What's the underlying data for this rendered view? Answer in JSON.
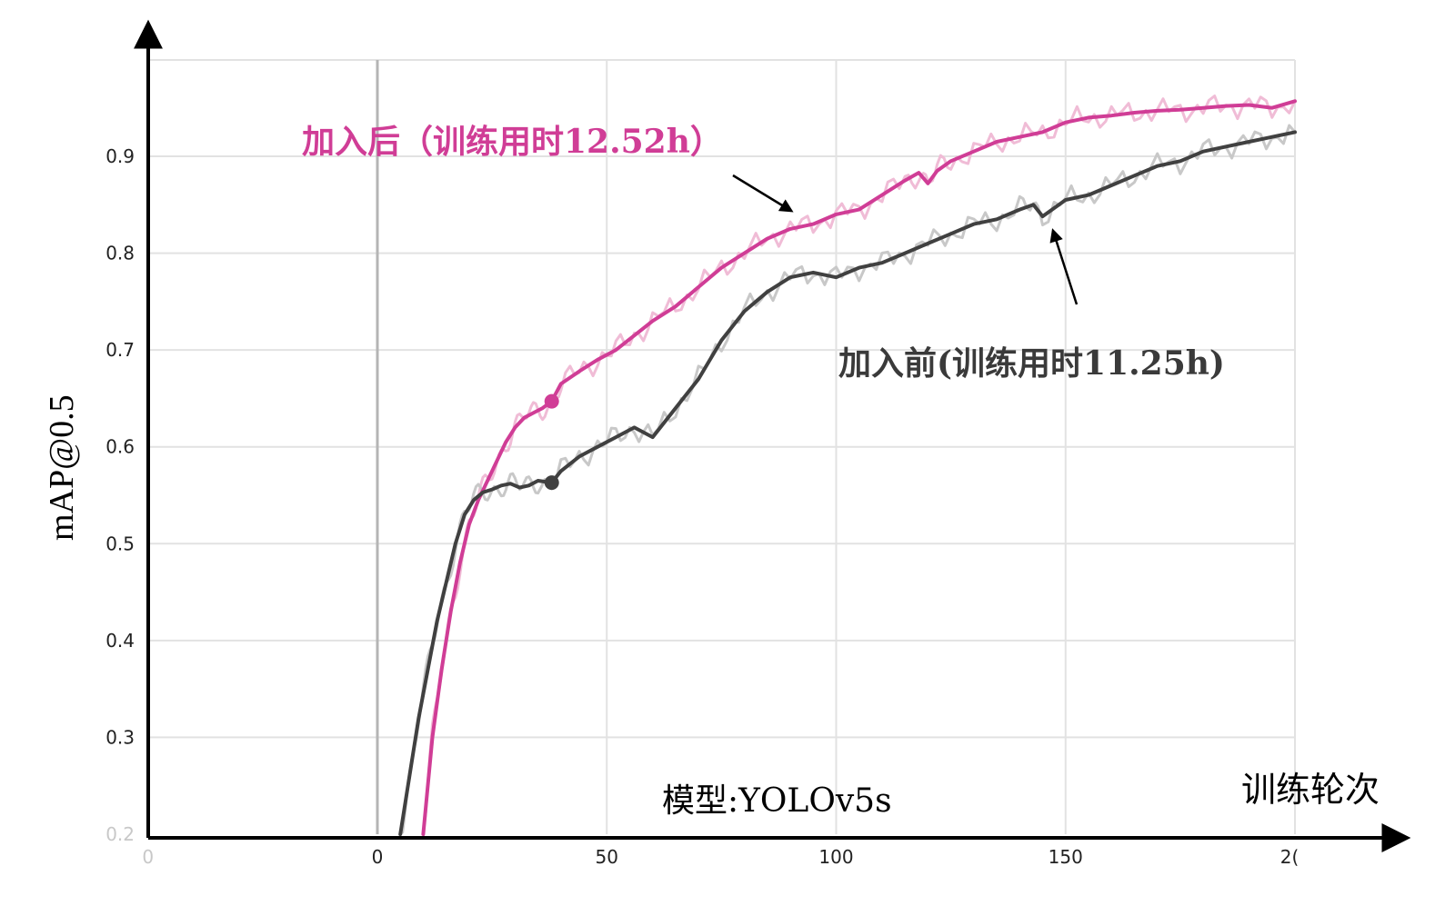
{
  "chart_data": {
    "type": "line",
    "title": "",
    "xlabel": "训练轮次",
    "ylabel": "mAP@0.5",
    "model_label": "模型:YOLOv5s",
    "xlim": [
      -50,
      200
    ],
    "ylim": [
      0.2,
      0.99
    ],
    "x_ticks": [
      "0",
      "0",
      "50",
      "100",
      "150",
      "2("
    ],
    "y_ticks": [
      "0.2",
      "0.3",
      "0.4",
      "0.5",
      "0.6",
      "0.7",
      "0.8",
      "0.9"
    ],
    "grid": true,
    "series": [
      {
        "name": "加入后（训练用时12.52h）",
        "color": "#d03d96",
        "raw_color": "#f0bcd6",
        "marker": {
          "x": 38,
          "y": 0.647
        },
        "x": [
          10,
          12,
          14,
          16,
          18,
          20,
          22,
          24,
          26,
          28,
          30,
          32,
          34,
          36,
          38,
          40,
          44,
          48,
          52,
          56,
          60,
          65,
          70,
          75,
          80,
          85,
          90,
          95,
          100,
          105,
          110,
          115,
          118,
          120,
          122,
          125,
          130,
          135,
          140,
          145,
          150,
          155,
          160,
          165,
          170,
          175,
          180,
          185,
          190,
          195,
          200
        ],
        "values": [
          0.2,
          0.3,
          0.37,
          0.43,
          0.48,
          0.52,
          0.545,
          0.565,
          0.585,
          0.605,
          0.62,
          0.63,
          0.635,
          0.64,
          0.647,
          0.665,
          0.678,
          0.69,
          0.7,
          0.715,
          0.73,
          0.745,
          0.765,
          0.785,
          0.8,
          0.815,
          0.825,
          0.83,
          0.84,
          0.845,
          0.86,
          0.875,
          0.883,
          0.872,
          0.885,
          0.895,
          0.905,
          0.915,
          0.92,
          0.925,
          0.935,
          0.94,
          0.942,
          0.945,
          0.947,
          0.948,
          0.95,
          0.952,
          0.953,
          0.95,
          0.957
        ]
      },
      {
        "name": "加入前(训练用时11.25h)",
        "color": "#404040",
        "raw_color": "#c8c8c8",
        "marker": {
          "x": 38,
          "y": 0.563
        },
        "x": [
          5,
          7,
          9,
          11,
          13,
          15,
          17,
          19,
          21,
          23,
          25,
          27,
          29,
          31,
          33,
          35,
          38,
          40,
          44,
          48,
          52,
          56,
          60,
          65,
          70,
          75,
          80,
          85,
          90,
          95,
          100,
          105,
          110,
          115,
          120,
          125,
          130,
          135,
          140,
          143,
          145,
          150,
          155,
          160,
          165,
          170,
          175,
          180,
          185,
          190,
          195,
          200
        ],
        "values": [
          0.2,
          0.26,
          0.32,
          0.37,
          0.42,
          0.46,
          0.5,
          0.53,
          0.545,
          0.553,
          0.556,
          0.56,
          0.562,
          0.558,
          0.56,
          0.565,
          0.563,
          0.575,
          0.59,
          0.6,
          0.61,
          0.62,
          0.61,
          0.64,
          0.67,
          0.71,
          0.74,
          0.76,
          0.775,
          0.78,
          0.775,
          0.785,
          0.79,
          0.8,
          0.81,
          0.82,
          0.83,
          0.835,
          0.845,
          0.85,
          0.838,
          0.855,
          0.86,
          0.87,
          0.88,
          0.89,
          0.895,
          0.905,
          0.91,
          0.915,
          0.92,
          0.925
        ]
      }
    ]
  }
}
